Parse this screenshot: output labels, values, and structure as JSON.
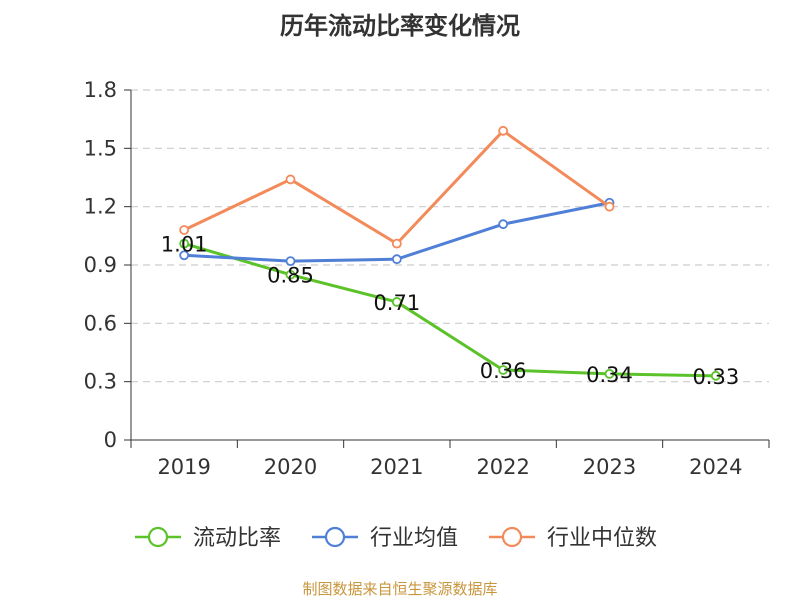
{
  "chart_data": {
    "type": "line",
    "title": "历年流动比率变化情况",
    "categories": [
      "2019",
      "2020",
      "2021",
      "2022",
      "2023",
      "2024"
    ],
    "ylim": [
      0,
      1.8
    ],
    "yticks": [
      "0",
      "0.3",
      "0.6",
      "0.9",
      "1.2",
      "1.5",
      "1.8"
    ],
    "grid": true,
    "legend_position": "bottom",
    "series": [
      {
        "name": "流动比率",
        "color": "#5bc22a",
        "values": [
          1.01,
          0.85,
          0.71,
          0.36,
          0.34,
          0.33
        ],
        "labels": [
          "1.01",
          "0.85",
          "0.71",
          "0.36",
          "0.34",
          "0.33"
        ]
      },
      {
        "name": "行业均值",
        "color": "#4f7fd6",
        "values": [
          0.95,
          0.92,
          0.93,
          1.11,
          1.22,
          null
        ]
      },
      {
        "name": "行业中位数",
        "color": "#f28a5a",
        "values": [
          1.08,
          1.34,
          1.01,
          1.59,
          1.2,
          null
        ]
      }
    ]
  },
  "source": "制图数据来自恒生聚源数据库"
}
